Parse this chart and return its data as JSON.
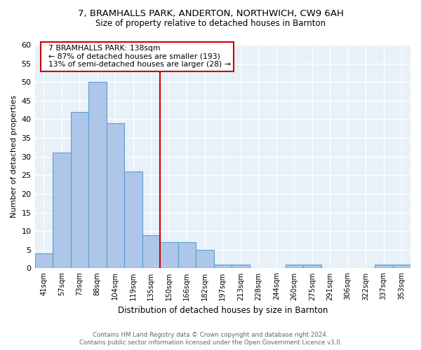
{
  "title1": "7, BRAMHALLS PARK, ANDERTON, NORTHWICH, CW9 6AH",
  "title2": "Size of property relative to detached houses in Barnton",
  "xlabel": "Distribution of detached houses by size in Barnton",
  "ylabel": "Number of detached properties",
  "footer1": "Contains HM Land Registry data © Crown copyright and database right 2024.",
  "footer2": "Contains public sector information licensed under the Open Government Licence v3.0.",
  "bin_labels": [
    "41sqm",
    "57sqm",
    "73sqm",
    "88sqm",
    "104sqm",
    "119sqm",
    "135sqm",
    "150sqm",
    "166sqm",
    "182sqm",
    "197sqm",
    "213sqm",
    "228sqm",
    "244sqm",
    "260sqm",
    "275sqm",
    "291sqm",
    "306sqm",
    "322sqm",
    "337sqm",
    "353sqm"
  ],
  "bar_values": [
    4,
    31,
    42,
    50,
    39,
    26,
    9,
    7,
    7,
    5,
    1,
    1,
    0,
    0,
    1,
    1,
    0,
    0,
    0,
    1,
    1
  ],
  "bar_color": "#aec6e8",
  "bar_edge_color": "#5a9fd4",
  "grid_color": "#c8d8e8",
  "property_line_x": 6.5,
  "property_sqm": 138,
  "pct_smaller": 87,
  "n_smaller": 193,
  "pct_larger_semi": 13,
  "n_larger_semi": 28,
  "annotation_box_edge": "#cc0000",
  "line_color": "#cc0000",
  "ylim": [
    0,
    60
  ],
  "yticks": [
    0,
    5,
    10,
    15,
    20,
    25,
    30,
    35,
    40,
    45,
    50,
    55,
    60
  ],
  "bg_color": "#e8f0f8"
}
